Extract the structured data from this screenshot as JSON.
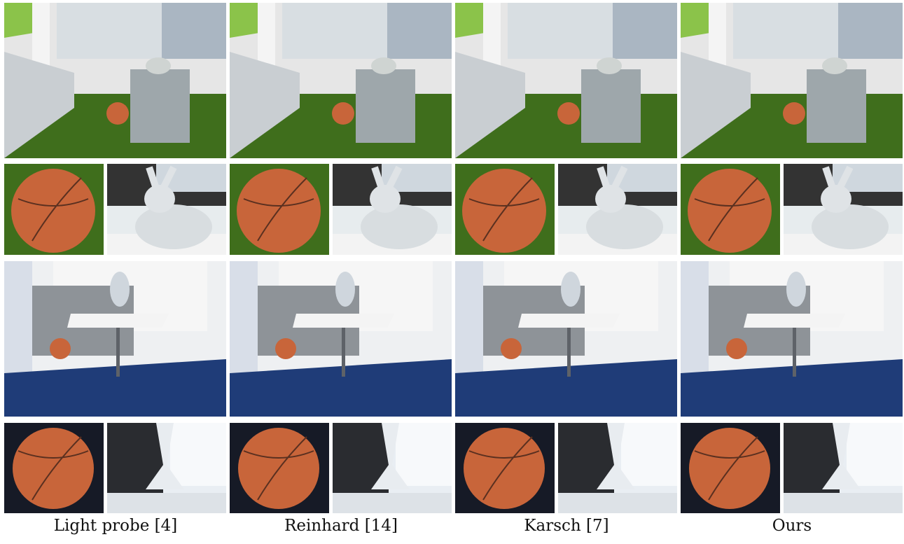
{
  "figure": {
    "columns": [
      {
        "label": "Light probe [4]"
      },
      {
        "label": "Reinhard [14]"
      },
      {
        "label": "Karsch [7]"
      },
      {
        "label": "Ours"
      }
    ],
    "rows": [
      {
        "scene": "office-bunny-scene"
      },
      {
        "scene": "office-bunny-closeups"
      },
      {
        "scene": "cafeteria-vase-scene"
      },
      {
        "scene": "cafeteria-vase-closeups"
      }
    ],
    "colors": {
      "green_wall": "#8bc34a",
      "carpet": "#3f6e1c",
      "blue_floor": "#1f3c78",
      "basketball": "#c8653a",
      "white": "#ffffff"
    }
  }
}
